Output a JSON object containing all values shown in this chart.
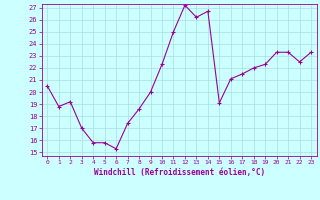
{
  "x": [
    0,
    1,
    2,
    3,
    4,
    5,
    6,
    7,
    8,
    9,
    10,
    11,
    12,
    13,
    14,
    15,
    16,
    17,
    18,
    19,
    20,
    21,
    22,
    23
  ],
  "y": [
    20.5,
    18.8,
    19.2,
    17.0,
    15.8,
    15.8,
    15.3,
    17.4,
    18.6,
    20.0,
    22.3,
    25.0,
    27.2,
    26.2,
    26.7,
    19.1,
    21.1,
    21.5,
    22.0,
    22.3,
    23.3,
    23.3,
    22.5,
    23.3
  ],
  "line_color": "#990099",
  "marker": "+",
  "marker_size": 3,
  "bg_color": "#ccffff",
  "grid_color": "#aadddd",
  "xlabel": "Windchill (Refroidissement éolien,°C)",
  "xlabel_color": "#990099",
  "tick_color": "#990099",
  "ylim": [
    15,
    27
  ],
  "xlim": [
    -0.5,
    23.5
  ],
  "yticks": [
    15,
    16,
    17,
    18,
    19,
    20,
    21,
    22,
    23,
    24,
    25,
    26,
    27
  ],
  "xticks": [
    0,
    1,
    2,
    3,
    4,
    5,
    6,
    7,
    8,
    9,
    10,
    11,
    12,
    13,
    14,
    15,
    16,
    17,
    18,
    19,
    20,
    21,
    22,
    23
  ]
}
